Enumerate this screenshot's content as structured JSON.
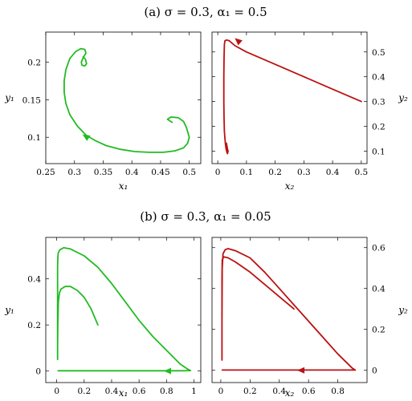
{
  "panel_titles": [
    "(a) σ = 0.3, α₁ = 0.5",
    "(b) σ = 0.3, α₁ = 0.05"
  ],
  "colors": {
    "green": "#22bb22",
    "red": "#bb1111",
    "axis": "#000000"
  },
  "chart_data": [
    {
      "type": "line",
      "xlabel": "x₁",
      "ylabel": "y₁",
      "xlim": [
        0.25,
        0.52
      ],
      "ylim": [
        0.065,
        0.24
      ],
      "xticks": [
        0.25,
        0.3,
        0.35,
        0.4,
        0.45,
        0.5
      ],
      "yticks": [
        0.1,
        0.15,
        0.2
      ],
      "y_axis_side": "left",
      "color": "green",
      "arrow_at": [
        0.32,
        0.101
      ],
      "x": [
        0.47,
        0.462,
        0.468,
        0.481,
        0.49,
        0.495,
        0.5,
        0.497,
        0.49,
        0.475,
        0.455,
        0.43,
        0.405,
        0.38,
        0.355,
        0.335,
        0.32,
        0.305,
        0.292,
        0.285,
        0.282,
        0.282,
        0.285,
        0.292,
        0.302,
        0.311,
        0.318,
        0.32,
        0.315,
        0.312,
        0.313,
        0.318,
        0.321,
        0.319,
        0.315
      ],
      "y": [
        0.12,
        0.124,
        0.127,
        0.126,
        0.121,
        0.113,
        0.1,
        0.092,
        0.086,
        0.082,
        0.08,
        0.08,
        0.081,
        0.084,
        0.089,
        0.096,
        0.103,
        0.115,
        0.13,
        0.145,
        0.16,
        0.175,
        0.19,
        0.205,
        0.214,
        0.218,
        0.217,
        0.212,
        0.206,
        0.2,
        0.196,
        0.195,
        0.198,
        0.204,
        0.207
      ]
    },
    {
      "type": "line",
      "xlabel": "x₂",
      "ylabel": "y₂",
      "xlim": [
        -0.02,
        0.52
      ],
      "ylim": [
        0.05,
        0.58
      ],
      "xticks": [
        0,
        0.1,
        0.2,
        0.3,
        0.4,
        0.5
      ],
      "yticks": [
        0.1,
        0.2,
        0.3,
        0.4,
        0.5
      ],
      "y_axis_side": "right",
      "color": "red",
      "arrow_at": [
        0.07,
        0.545
      ],
      "x": [
        0.5,
        0.4,
        0.3,
        0.2,
        0.1,
        0.06,
        0.04,
        0.03,
        0.025,
        0.023,
        0.022,
        0.021,
        0.021,
        0.022,
        0.023,
        0.025,
        0.027,
        0.029,
        0.032,
        0.034,
        0.035,
        0.033,
        0.031,
        0.03,
        0.031,
        0.033,
        0.036,
        0.035
      ],
      "y": [
        0.3,
        0.35,
        0.4,
        0.45,
        0.5,
        0.525,
        0.545,
        0.548,
        0.545,
        0.53,
        0.48,
        0.4,
        0.3,
        0.23,
        0.18,
        0.15,
        0.125,
        0.11,
        0.095,
        0.09,
        0.1,
        0.115,
        0.128,
        0.132,
        0.12,
        0.105,
        0.098,
        0.105
      ]
    },
    {
      "type": "line",
      "xlabel": "x₁",
      "ylabel": "y₁",
      "xlim": [
        -0.08,
        1.05
      ],
      "ylim": [
        -0.05,
        0.58
      ],
      "xticks": [
        0,
        0.2,
        0.4,
        0.6,
        0.8,
        1
      ],
      "yticks": [
        0,
        0.2,
        0.4
      ],
      "y_axis_side": "left",
      "color": "green",
      "arrow_at": [
        0.81,
        0
      ],
      "x": [
        0.3,
        0.25,
        0.2,
        0.15,
        0.1,
        0.06,
        0.03,
        0.02,
        0.012,
        0.008,
        0.006,
        0.006,
        0.006,
        0.006,
        0.008,
        0.01,
        0.02,
        0.05,
        0.1,
        0.2,
        0.3,
        0.4,
        0.5,
        0.6,
        0.7,
        0.8,
        0.9,
        0.95,
        0.975,
        0.9,
        0.8,
        0.7,
        0.6,
        0.5,
        0.4,
        0.3,
        0.2,
        0.1,
        0.05,
        0.01
      ],
      "y": [
        0.2,
        0.27,
        0.32,
        0.35,
        0.367,
        0.367,
        0.355,
        0.34,
        0.3,
        0.2,
        0.1,
        0.05,
        0.3,
        0.45,
        0.49,
        0.51,
        0.525,
        0.535,
        0.53,
        0.5,
        0.45,
        0.38,
        0.3,
        0.22,
        0.15,
        0.09,
        0.03,
        0.01,
        0.002,
        0.001,
        0.001,
        0.001,
        0.001,
        0.001,
        0.001,
        0.001,
        0.001,
        0.001,
        0.001,
        0.001
      ]
    },
    {
      "type": "line",
      "xlabel": "x₂",
      "ylabel": "y₂",
      "xlim": [
        -0.06,
        1.0
      ],
      "ylim": [
        -0.06,
        0.65
      ],
      "xticks": [
        0,
        0.2,
        0.4,
        0.6,
        0.8
      ],
      "yticks": [
        0,
        0.2,
        0.4,
        0.6
      ],
      "y_axis_side": "right",
      "color": "red",
      "arrow_at": [
        0.55,
        0
      ],
      "x": [
        0.5,
        0.4,
        0.3,
        0.2,
        0.1,
        0.05,
        0.02,
        0.01,
        0.008,
        0.008,
        0.008,
        0.008,
        0.008,
        0.01,
        0.015,
        0.03,
        0.05,
        0.1,
        0.2,
        0.3,
        0.4,
        0.5,
        0.6,
        0.7,
        0.8,
        0.9,
        0.92,
        0.85,
        0.75,
        0.65,
        0.55,
        0.45,
        0.35,
        0.25,
        0.15,
        0.05,
        0.01
      ],
      "y": [
        0.3,
        0.36,
        0.42,
        0.48,
        0.53,
        0.55,
        0.555,
        0.54,
        0.45,
        0.3,
        0.15,
        0.05,
        0.25,
        0.5,
        0.57,
        0.59,
        0.595,
        0.585,
        0.55,
        0.48,
        0.4,
        0.32,
        0.24,
        0.16,
        0.08,
        0.01,
        0.001,
        0.001,
        0.001,
        0.001,
        0.001,
        0.001,
        0.001,
        0.001,
        0.001,
        0.001,
        0.001
      ]
    }
  ]
}
